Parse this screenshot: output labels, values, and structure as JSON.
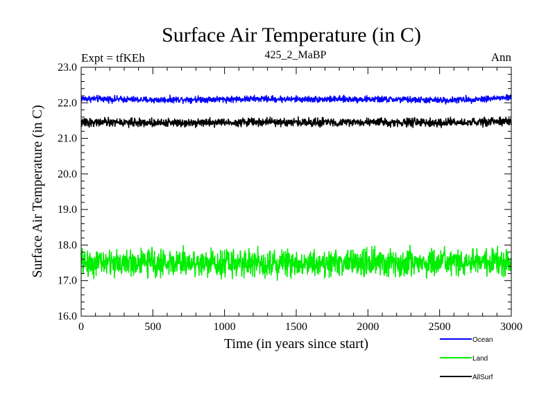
{
  "chart_data": {
    "type": "line",
    "title": "Surface Air Temperature (in C)",
    "subtitle": "425_2_MaBP",
    "expt_label": "Expt = tfKEh",
    "season_label": "Ann",
    "xlabel": "Time (in years since start)",
    "ylabel": "Surface Air Temperature (in C)",
    "xlim": [
      0,
      3000
    ],
    "ylim": [
      16.0,
      23.0
    ],
    "xticks": [
      0,
      500,
      1000,
      1500,
      2000,
      2500,
      3000
    ],
    "xtick_labels": [
      "0",
      "500",
      "1000",
      "1500",
      "2000",
      "2500",
      "3000"
    ],
    "yticks": [
      16.0,
      17.0,
      18.0,
      19.0,
      20.0,
      21.0,
      22.0,
      23.0
    ],
    "ytick_labels": [
      "16.0",
      "17.0",
      "18.0",
      "19.0",
      "20.0",
      "21.0",
      "22.0",
      "23.0"
    ],
    "grid": false,
    "legend_position": "bottom-right",
    "series": [
      {
        "name": "Ocean",
        "color": "#0000ff",
        "mean": 22.1,
        "noise_range": [
          21.95,
          22.3
        ],
        "x": [
          0,
          250,
          500,
          750,
          1000,
          1250,
          1500,
          1750,
          2000,
          2250,
          2500,
          2750,
          3000
        ],
        "values": [
          22.12,
          22.1,
          22.08,
          22.1,
          22.1,
          22.11,
          22.1,
          22.1,
          22.1,
          22.09,
          22.07,
          22.1,
          22.15
        ]
      },
      {
        "name": "Land",
        "color": "#00ee00",
        "mean": 17.5,
        "noise_range": [
          16.85,
          18.35
        ],
        "x": [
          0,
          250,
          500,
          750,
          1000,
          1250,
          1500,
          1750,
          2000,
          2250,
          2500,
          2750,
          3000
        ],
        "values": [
          17.5,
          17.5,
          17.5,
          17.5,
          17.5,
          17.5,
          17.5,
          17.5,
          17.5,
          17.5,
          17.5,
          17.5,
          17.5
        ]
      },
      {
        "name": "AllSurf",
        "color": "#000000",
        "mean": 21.45,
        "noise_range": [
          21.25,
          21.7
        ],
        "x": [
          0,
          250,
          500,
          750,
          1000,
          1250,
          1500,
          1750,
          2000,
          2250,
          2500,
          2750,
          3000
        ],
        "values": [
          21.45,
          21.45,
          21.44,
          21.45,
          21.45,
          21.46,
          21.45,
          21.45,
          21.45,
          21.45,
          21.43,
          21.45,
          21.48
        ]
      }
    ]
  }
}
